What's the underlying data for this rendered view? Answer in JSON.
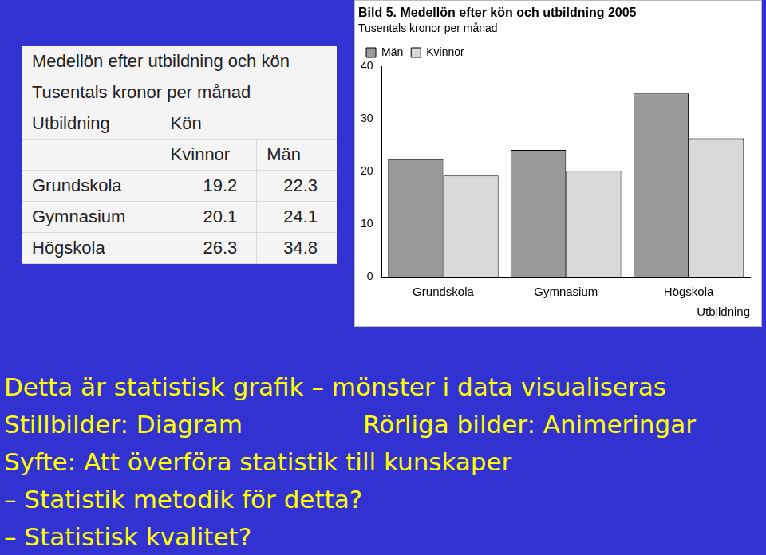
{
  "table": {
    "title": "Medellön efter utbildning och kön",
    "subtitle": "Tusentals kronor per månad",
    "header": [
      "Utbildning",
      "Kön"
    ],
    "columns": [
      "Kvinnor",
      "Män"
    ],
    "rows": [
      [
        "Grundskola",
        19.2,
        22.3
      ],
      [
        "Gymnasium",
        20.1,
        24.1
      ],
      [
        "Högskola",
        26.3,
        34.8
      ]
    ]
  },
  "chart_data": {
    "type": "bar",
    "title": "Bild 5. Medellön efter kön och utbildning 2005",
    "subtitle": "Tusentals kronor per månad",
    "x_label": "Utbildning",
    "categories": [
      "Grundskola",
      "Gymnasium",
      "Högskola"
    ],
    "series": [
      {
        "name": "Män",
        "color": "#999999",
        "values": [
          22.3,
          24.1,
          34.8
        ]
      },
      {
        "name": "Kvinnor",
        "color": "#d9d9d9",
        "values": [
          19.2,
          20.1,
          26.3
        ]
      }
    ],
    "ylim": [
      0,
      40
    ],
    "yticks": [
      0,
      10,
      20,
      30,
      40
    ],
    "grid": false,
    "legend": "upper left"
  },
  "text": {
    "lines": [
      [
        "Detta är statistisk grafik – mönster i data visualiseras"
      ],
      [
        "Stillbilder: Diagram",
        "Rörliga bilder: Animeringar"
      ],
      [
        "Syfte: Att överföra statistik till kunskaper"
      ],
      [
        "– Statistik metodik för detta?"
      ],
      [
        "– Statistisk kvalitet?"
      ]
    ]
  }
}
